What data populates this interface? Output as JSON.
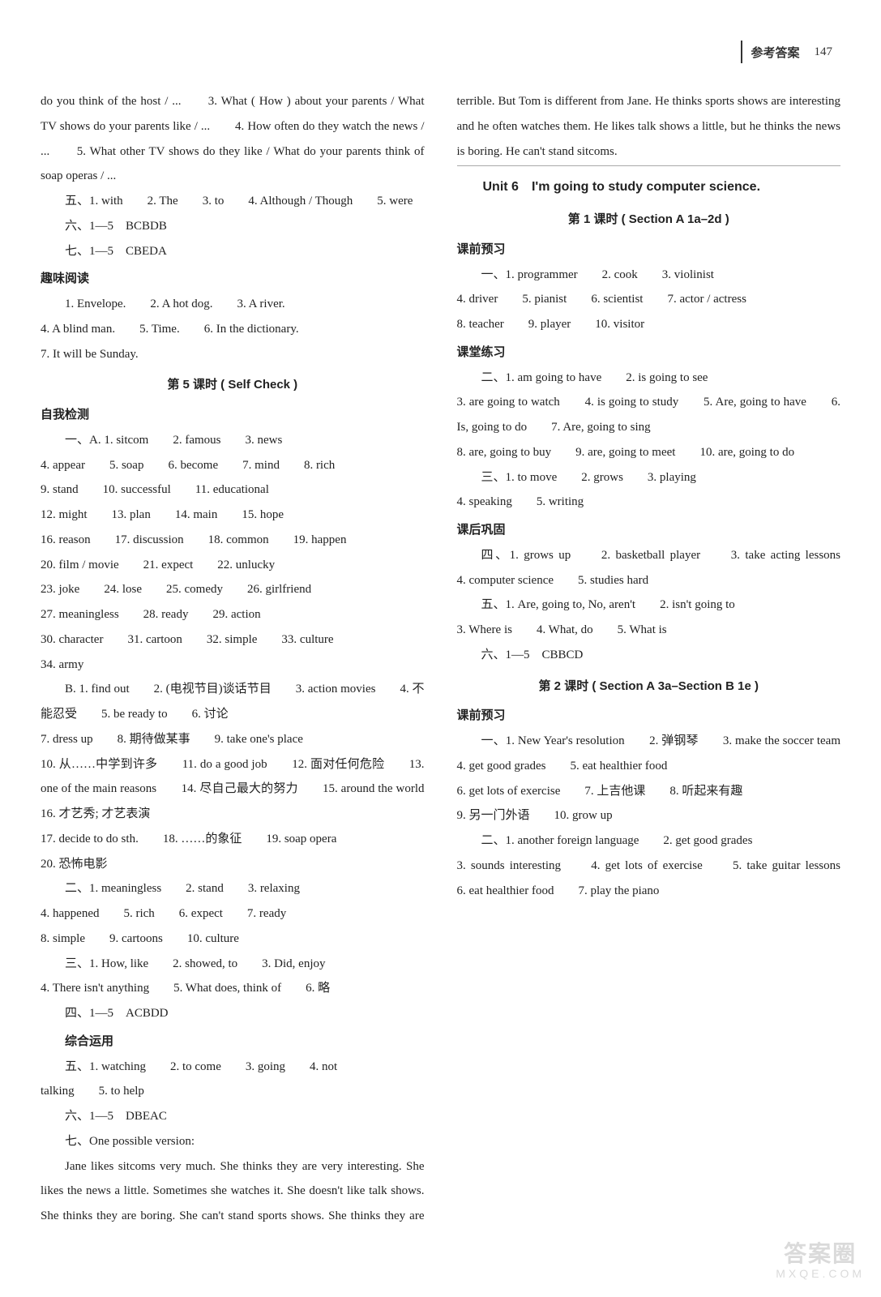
{
  "header": {
    "label": "参考答案",
    "page": "147"
  },
  "left": {
    "p1": "do you think of the host / ...　　3. What ( How ) about your parents / What TV shows do your parents like / ...　　4. How often do they watch the news / ...　　5. What other TV shows do they like / What do your parents think of soap operas / ...",
    "p2": "五、1. with　　2. The　　3. to　　4. Although / Though　　5. were",
    "p3": "六、1—5　BCBDB",
    "p4": "七、1—5　CBEDA",
    "h1": "趣味阅读",
    "p5": "1. Envelope.　　2. A hot dog.　　3. A river.",
    "p6": "4. A blind man.　　5. Time.　　6. In the dictionary.",
    "p7": "7. It will be Sunday.",
    "lesson5": "第 5 课时 ( Self Check )",
    "h2": "自我检测",
    "p8": "一、A. 1. sitcom　　2. famous　　3. news",
    "p9": "4. appear　　5. soap　　6. become　　7. mind　　8. rich",
    "p10": "9. stand　　10. successful　　11. educational",
    "p11": "12. might　　13. plan　　14. main　　15. hope",
    "p12": "16. reason　　17. discussion　　18. common　　19. happen",
    "p13": "20. film / movie　　21. expect　　22. unlucky",
    "p14": "23. joke　　24. lose　　25. comedy　　26. girlfriend",
    "p15": "27. meaningless　　28. ready　　29. action",
    "p16": "30. character　　31. cartoon　　32. simple　　33. culture",
    "p17": "34. army",
    "p18": "B. 1. find out　　2. (电视节目)谈话节目　　3. action movies　　4. 不能忍受　　5. be ready to　　6. 讨论",
    "p19": "7. dress up　　8. 期待做某事　　9. take one's place",
    "p20": "10. 从……中学到许多　　11. do a good job　　12. 面对任何危险　　13. one of the main reasons　　14. 尽自己最大的努力　　15. around the world　　16. 才艺秀; 才艺表演",
    "p21": "17. decide to do sth.　　18. ……的象征　　19. soap opera",
    "p22": "20. 恐怖电影",
    "p23": "二、1. meaningless　　2. stand　　3. relaxing",
    "p24": "4. happened　　5. rich　　6. expect　　7. ready",
    "p25": "8. simple　　9. cartoons　　10. culture",
    "p26": "三、1. How, like　　2. showed, to　　3. Did, enjoy",
    "p27": "4. There isn't anything　　5. What does, think of　　6. 略",
    "p28": "四、1—5　ACBDD",
    "h3": "综合运用",
    "p29": "五、1. watching　　2. to come　　3. going　　4. not"
  },
  "right": {
    "p30": "talking　　5. to help",
    "p31": "六、1—5　DBEAC",
    "p32": "七、One possible version:",
    "p33": "Jane likes sitcoms very much. She thinks they are very interesting. She likes the news a little. Sometimes she watches it. She doesn't like talk shows. She thinks they are boring. She can't stand sports shows. She thinks they are terrible. But Tom is different from Jane. He thinks sports shows are interesting and he often watches them. He likes talk shows a little, but he thinks the news is boring. He can't stand sitcoms.",
    "unit6": "Unit 6　I'm going to study computer science.",
    "lesson1": "第 1 课时 ( Section A 1a–2d )",
    "h4": "课前预习",
    "p34": "一、1. programmer　　2. cook　　3. violinist",
    "p35": "4. driver　　5. pianist　　6. scientist　　7. actor / actress",
    "p36": "8. teacher　　9. player　　10. visitor",
    "h5": "课堂练习",
    "p37": "二、1. am going to have　　2. is going to see",
    "p38": "3. are going to watch　　4. is going to study　　5. Are, going to have　　6. Is, going to do　　7. Are, going to sing",
    "p39": "8. are, going to buy　　9. are, going to meet　　10. are, going to do",
    "p40": "三、1. to move　　2. grows　　3. playing",
    "p41": "4. speaking　　5. writing",
    "h6": "课后巩固",
    "p42": "四、1. grows up　　2. basketball player　　3. take acting lessons　　4. computer science　　5. studies hard",
    "p43": "五、1. Are, going to, No, aren't　　2. isn't going to",
    "p44": "3. Where is　　4. What, do　　5. What is",
    "p45": "六、1—5　CBBCD",
    "lesson2": "第 2 课时 ( Section A 3a–Section B 1e )",
    "h7": "课前预习",
    "p46": "一、1. New Year's resolution　　2. 弹钢琴　　3. make the soccer team　　4. get good grades　　5. eat healthier food",
    "p47": "6. get lots of exercise　　7. 上吉他课　　8. 听起来有趣",
    "p48": "9. 另一门外语　　10. grow up",
    "p49": "二、1. another foreign language　　2. get good grades",
    "p50": "3. sounds interesting　　4. get lots of exercise　　5. take guitar lessons　　6. eat healthier food　　7. play the piano"
  },
  "watermark": {
    "main": "答案圈",
    "sub": "MXQE.COM"
  }
}
